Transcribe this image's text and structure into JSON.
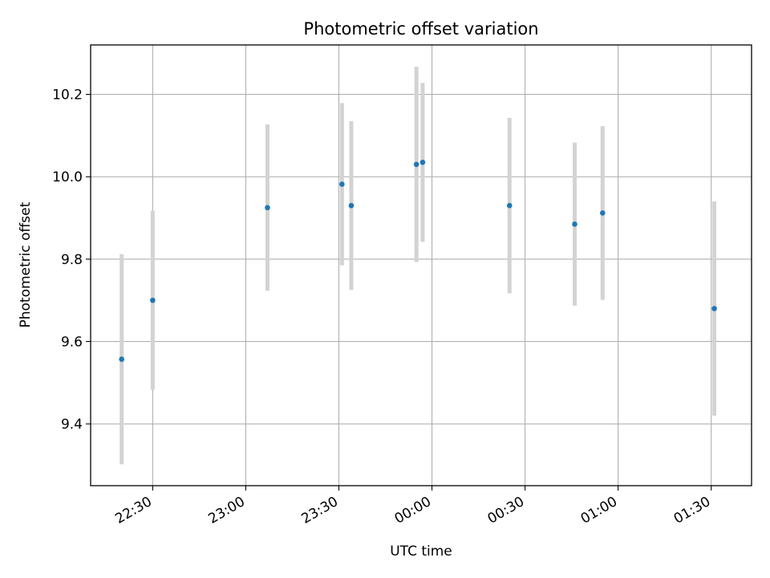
{
  "chart_data": {
    "type": "scatter",
    "title": "Photometric offset variation",
    "xlabel": "UTC time",
    "ylabel": "Photometric offset",
    "x_is_time": true,
    "x_reference_date": "2000-01-01",
    "xlim": [
      "22:10",
      "01:43"
    ],
    "ylim": [
      9.25,
      10.32
    ],
    "xticks": [
      "22:30",
      "23:00",
      "23:30",
      "00:00",
      "00:30",
      "01:00",
      "01:30"
    ],
    "yticks": [
      9.4,
      9.6,
      9.8,
      10.0,
      10.2
    ],
    "ytick_labels": [
      "9.4",
      "9.6",
      "9.8",
      "10.0",
      "10.2"
    ],
    "grid": true,
    "marker_color": "#1f77b4",
    "errorbar_color": "#d3d3d3",
    "series": [
      {
        "points": [
          {
            "x": "22:20",
            "y": 9.557,
            "yerr": 0.255
          },
          {
            "x": "22:30",
            "y": 9.7,
            "yerr": 0.217
          },
          {
            "x": "23:07",
            "y": 9.925,
            "yerr": 0.202
          },
          {
            "x": "23:31",
            "y": 9.982,
            "yerr": 0.197
          },
          {
            "x": "23:34",
            "y": 9.93,
            "yerr": 0.205
          },
          {
            "x": "23:55",
            "y": 10.03,
            "yerr": 0.237
          },
          {
            "x": "23:57",
            "y": 10.035,
            "yerr": 0.193
          },
          {
            "x": "00:25",
            "y": 9.93,
            "yerr": 0.213
          },
          {
            "x": "00:46",
            "y": 9.885,
            "yerr": 0.198
          },
          {
            "x": "00:55",
            "y": 9.912,
            "yerr": 0.211
          },
          {
            "x": "01:31",
            "y": 9.68,
            "yerr": 0.26
          }
        ]
      }
    ]
  }
}
